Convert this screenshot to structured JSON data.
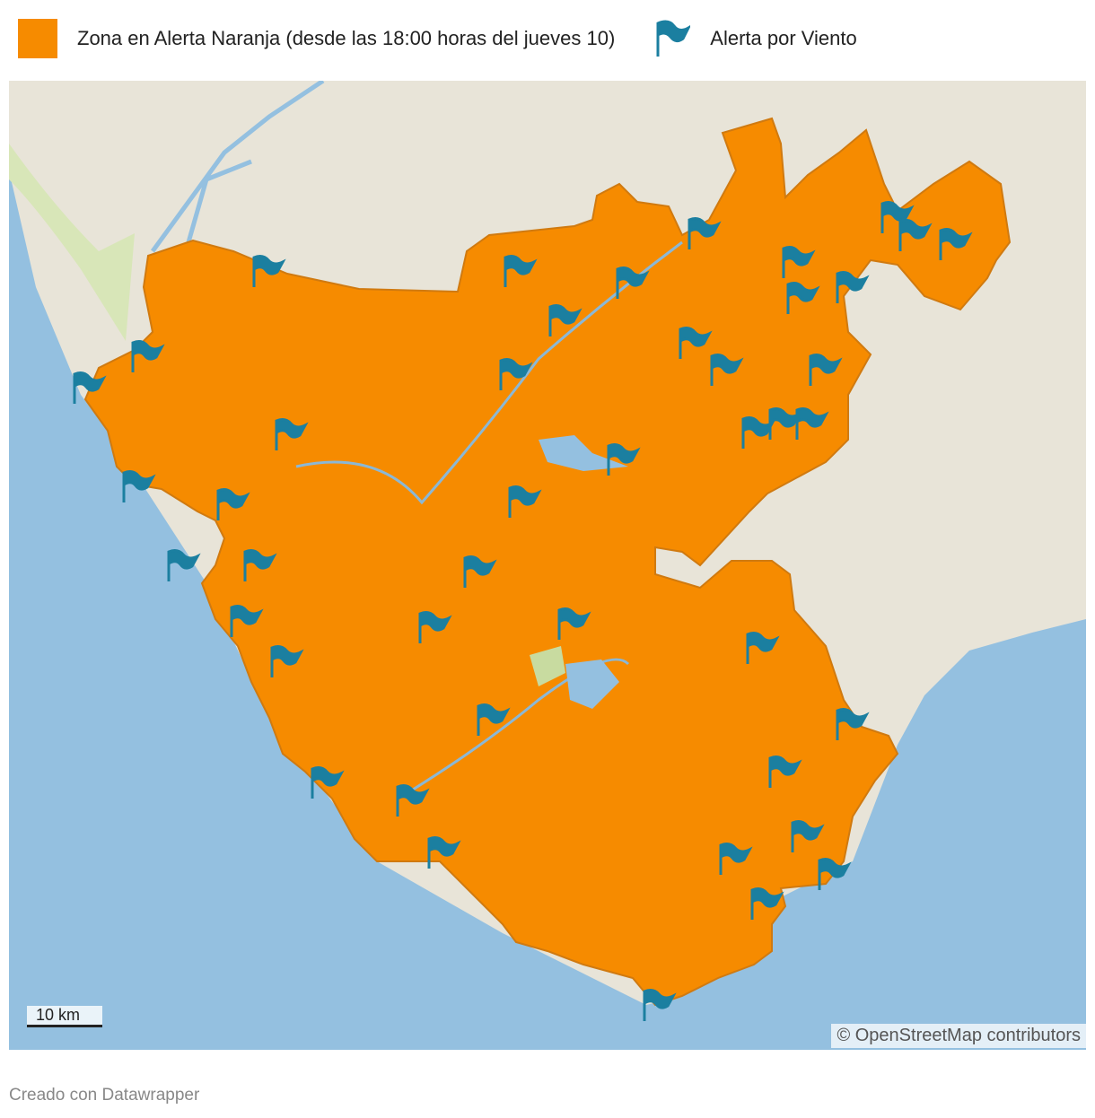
{
  "legend": [
    {
      "label": "Zona en Alerta Naranja (desde las 18:00 horas del jueves 10)",
      "color": "#f68b00"
    },
    {
      "label": "Alerta por Viento",
      "color": "#1b7fa0"
    }
  ],
  "scale": {
    "label": "10 km"
  },
  "attribution": "© OpenStreetMap contributors",
  "footer": "Creado con Datawrapper"
}
